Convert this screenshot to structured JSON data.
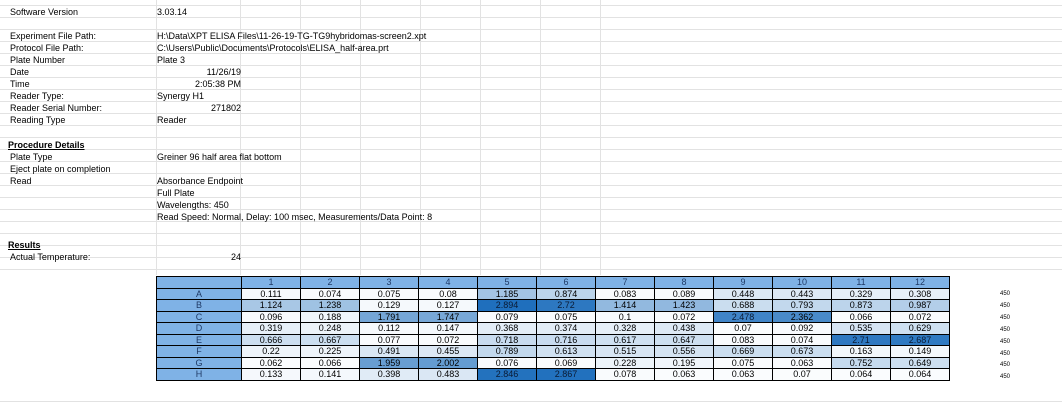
{
  "header": {
    "software_version_label": "Software Version",
    "software_version_value": "3.03.14",
    "experiment_file_label": "Experiment File Path:",
    "experiment_file_value": "H:\\Data\\XPT ELISA Files\\11-26-19-TG-TG9hybridomas-screen2.xpt",
    "protocol_file_label": "Protocol File Path:",
    "protocol_file_value": "C:\\Users\\Public\\Documents\\Protocols\\ELISA_half-area.prt",
    "plate_number_label": "Plate Number",
    "plate_number_value": "Plate 3",
    "date_label": "Date",
    "date_value": "11/26/19",
    "time_label": "Time",
    "time_value": "2:05:38 PM",
    "reader_type_label": "Reader Type:",
    "reader_type_value": "Synergy H1",
    "reader_serial_label": "Reader Serial Number:",
    "reader_serial_value": "271802",
    "reading_type_label": "Reading Type",
    "reading_type_value": "Reader"
  },
  "procedure": {
    "title": "Procedure Details",
    "plate_type_label": "Plate Type",
    "plate_type_value": "Greiner 96 half area flat bottom",
    "eject_label": "Eject plate on completion",
    "read_label": "Read",
    "read_line1": "Absorbance Endpoint",
    "read_line2": "Full Plate",
    "read_line3": "Wavelengths:  450",
    "read_line4": "Read Speed: Normal,  Delay: 100 msec,  Measurements/Data Point: 8"
  },
  "results": {
    "title": "Results",
    "temp_label": "Actual Temperature:",
    "temp_value": "24"
  },
  "plate": {
    "columns": [
      "1",
      "2",
      "3",
      "4",
      "5",
      "6",
      "7",
      "8",
      "9",
      "10",
      "11",
      "12"
    ],
    "rows": [
      {
        "label": "A",
        "values": [
          "0.111",
          "0.074",
          "0.075",
          "0.08",
          "1.185",
          "0.874",
          "0.083",
          "0.089",
          "0.448",
          "0.443",
          "0.329",
          "0.308"
        ],
        "wl": "450"
      },
      {
        "label": "B",
        "values": [
          "1.124",
          "1.238",
          "0.129",
          "0.127",
          "2.894",
          "2.72",
          "1.414",
          "1.423",
          "0.688",
          "0.793",
          "0.873",
          "0.987"
        ],
        "wl": "450"
      },
      {
        "label": "C",
        "values": [
          "0.096",
          "0.188",
          "1.791",
          "1.747",
          "0.079",
          "0.075",
          "0.1",
          "0.072",
          "2.478",
          "2.362",
          "0.066",
          "0.072"
        ],
        "wl": "450"
      },
      {
        "label": "D",
        "values": [
          "0.319",
          "0.248",
          "0.112",
          "0.147",
          "0.368",
          "0.374",
          "0.328",
          "0.438",
          "0.07",
          "0.092",
          "0.535",
          "0.629"
        ],
        "wl": "450"
      },
      {
        "label": "E",
        "values": [
          "0.666",
          "0.667",
          "0.077",
          "0.072",
          "0.718",
          "0.716",
          "0.617",
          "0.647",
          "0.083",
          "0.074",
          "2.71",
          "2.687"
        ],
        "wl": "450"
      },
      {
        "label": "F",
        "values": [
          "0.22",
          "0.225",
          "0.491",
          "0.455",
          "0.789",
          "0.613",
          "0.515",
          "0.556",
          "0.669",
          "0.673",
          "0.163",
          "0.149"
        ],
        "wl": "450"
      },
      {
        "label": "G",
        "values": [
          "0.062",
          "0.066",
          "1.959",
          "2.002",
          "0.076",
          "0.069",
          "0.228",
          "0.195",
          "0.075",
          "0.063",
          "0.752",
          "0.649"
        ],
        "wl": "450"
      },
      {
        "label": "H",
        "values": [
          "0.133",
          "0.141",
          "0.398",
          "0.483",
          "2.846",
          "2.867",
          "0.078",
          "0.063",
          "0.063",
          "0.07",
          "0.064",
          "0.064"
        ],
        "wl": "450"
      }
    ],
    "color_scale": {
      "low": "#ffffff",
      "high": "#1f6fbd",
      "max_value": 2.9
    }
  }
}
